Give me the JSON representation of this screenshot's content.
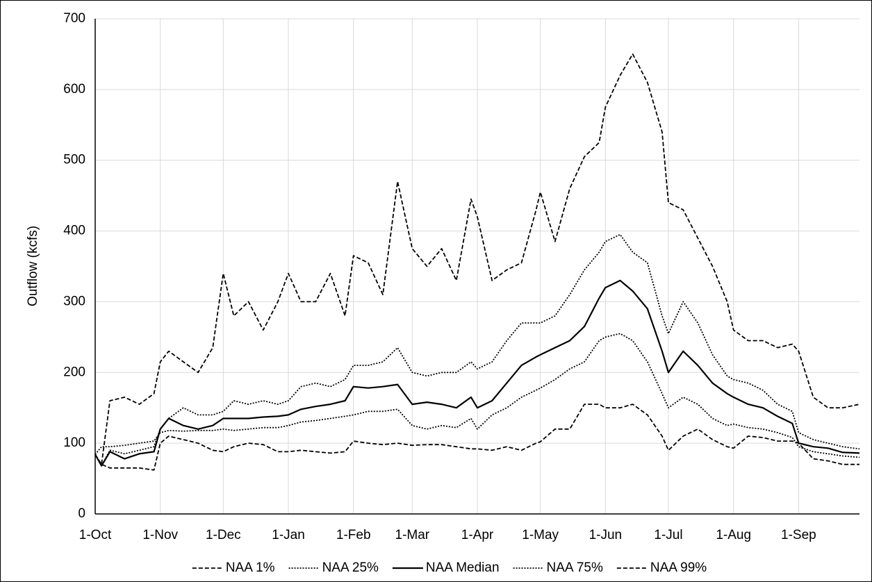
{
  "chart_data": {
    "type": "line",
    "y_label": "Outflow (kcfs)",
    "x": [
      0,
      3,
      7,
      14,
      21,
      28,
      31,
      35,
      42,
      49,
      56,
      61,
      66,
      73,
      80,
      87,
      92,
      98,
      105,
      112,
      119,
      123,
      130,
      137,
      144,
      151,
      158,
      165,
      172,
      179,
      182,
      189,
      196,
      203,
      210,
      212,
      219,
      226,
      233,
      240,
      243,
      250,
      256,
      263,
      270,
      273,
      280,
      287,
      294,
      301,
      304,
      311,
      318,
      325,
      332,
      335,
      342,
      349,
      356,
      364
    ],
    "xlim": [
      0,
      364
    ],
    "xticks": [
      {
        "value": 0,
        "label": "1-Oct"
      },
      {
        "value": 31,
        "label": "1-Nov"
      },
      {
        "value": 61,
        "label": "1-Dec"
      },
      {
        "value": 92,
        "label": "1-Jan"
      },
      {
        "value": 123,
        "label": "1-Feb"
      },
      {
        "value": 151,
        "label": "1-Mar"
      },
      {
        "value": 182,
        "label": "1-Apr"
      },
      {
        "value": 212,
        "label": "1-May"
      },
      {
        "value": 243,
        "label": "1-Jun"
      },
      {
        "value": 273,
        "label": "1-Jul"
      },
      {
        "value": 304,
        "label": "1-Aug"
      },
      {
        "value": 335,
        "label": "1-Sep"
      }
    ],
    "ylim": [
      0,
      700
    ],
    "yticks": [
      0,
      100,
      200,
      300,
      400,
      500,
      600,
      700
    ],
    "grid": true,
    "legend": "bottom",
    "series": [
      {
        "name": "NAA 1%",
        "color": "#000000",
        "dash": "6,3",
        "values": [
          84,
          70,
          65,
          65,
          65,
          62,
          100,
          110,
          105,
          100,
          90,
          88,
          95,
          100,
          98,
          88,
          88,
          90,
          88,
          86,
          88,
          103,
          100,
          98,
          100,
          97,
          98,
          98,
          95,
          92,
          92,
          90,
          95,
          90,
          100,
          102,
          120,
          120,
          155,
          155,
          150,
          150,
          155,
          140,
          110,
          90,
          110,
          120,
          105,
          95,
          93,
          110,
          108,
          103,
          103,
          100,
          78,
          75,
          70,
          70
        ]
      },
      {
        "name": "NAA 25%",
        "color": "#000000",
        "dash": "2,2",
        "values": [
          84,
          95,
          95,
          97,
          100,
          103,
          115,
          118,
          117,
          118,
          118,
          120,
          118,
          120,
          122,
          122,
          125,
          130,
          132,
          135,
          138,
          140,
          145,
          145,
          148,
          125,
          120,
          125,
          122,
          135,
          120,
          140,
          150,
          165,
          175,
          178,
          190,
          205,
          215,
          245,
          250,
          255,
          245,
          215,
          170,
          150,
          165,
          155,
          135,
          125,
          127,
          122,
          120,
          115,
          108,
          95,
          88,
          85,
          82,
          80
        ]
      },
      {
        "name": "NAA Median",
        "color": "#000000",
        "dash": "none",
        "values": [
          84,
          68,
          88,
          78,
          85,
          88,
          120,
          135,
          125,
          120,
          125,
          135,
          135,
          135,
          137,
          138,
          140,
          148,
          152,
          155,
          160,
          180,
          178,
          180,
          183,
          155,
          158,
          155,
          150,
          165,
          150,
          160,
          185,
          210,
          222,
          225,
          235,
          245,
          265,
          305,
          320,
          330,
          315,
          290,
          230,
          200,
          230,
          210,
          185,
          170,
          165,
          155,
          150,
          138,
          128,
          100,
          95,
          93,
          87,
          86
        ]
      },
      {
        "name": "NAA 75%",
        "color": "#000000",
        "dash": "2,2",
        "values": [
          84,
          68,
          90,
          85,
          90,
          95,
          120,
          135,
          150,
          140,
          140,
          145,
          160,
          155,
          160,
          155,
          160,
          180,
          185,
          180,
          190,
          210,
          210,
          215,
          235,
          200,
          195,
          200,
          200,
          215,
          205,
          215,
          245,
          270,
          270,
          270,
          280,
          310,
          345,
          370,
          385,
          395,
          370,
          355,
          280,
          255,
          300,
          270,
          225,
          195,
          190,
          185,
          175,
          155,
          145,
          115,
          105,
          100,
          95,
          92
        ]
      },
      {
        "name": "NAA 99%",
        "color": "#000000",
        "dash": "6,3",
        "values": [
          84,
          70,
          160,
          165,
          155,
          170,
          215,
          230,
          215,
          200,
          235,
          340,
          280,
          300,
          260,
          300,
          340,
          300,
          300,
          340,
          280,
          365,
          355,
          310,
          470,
          375,
          350,
          375,
          330,
          445,
          420,
          330,
          345,
          355,
          430,
          455,
          385,
          460,
          505,
          525,
          575,
          620,
          650,
          610,
          540,
          440,
          430,
          390,
          350,
          300,
          260,
          245,
          245,
          235,
          240,
          230,
          165,
          150,
          150,
          155
        ]
      }
    ]
  }
}
